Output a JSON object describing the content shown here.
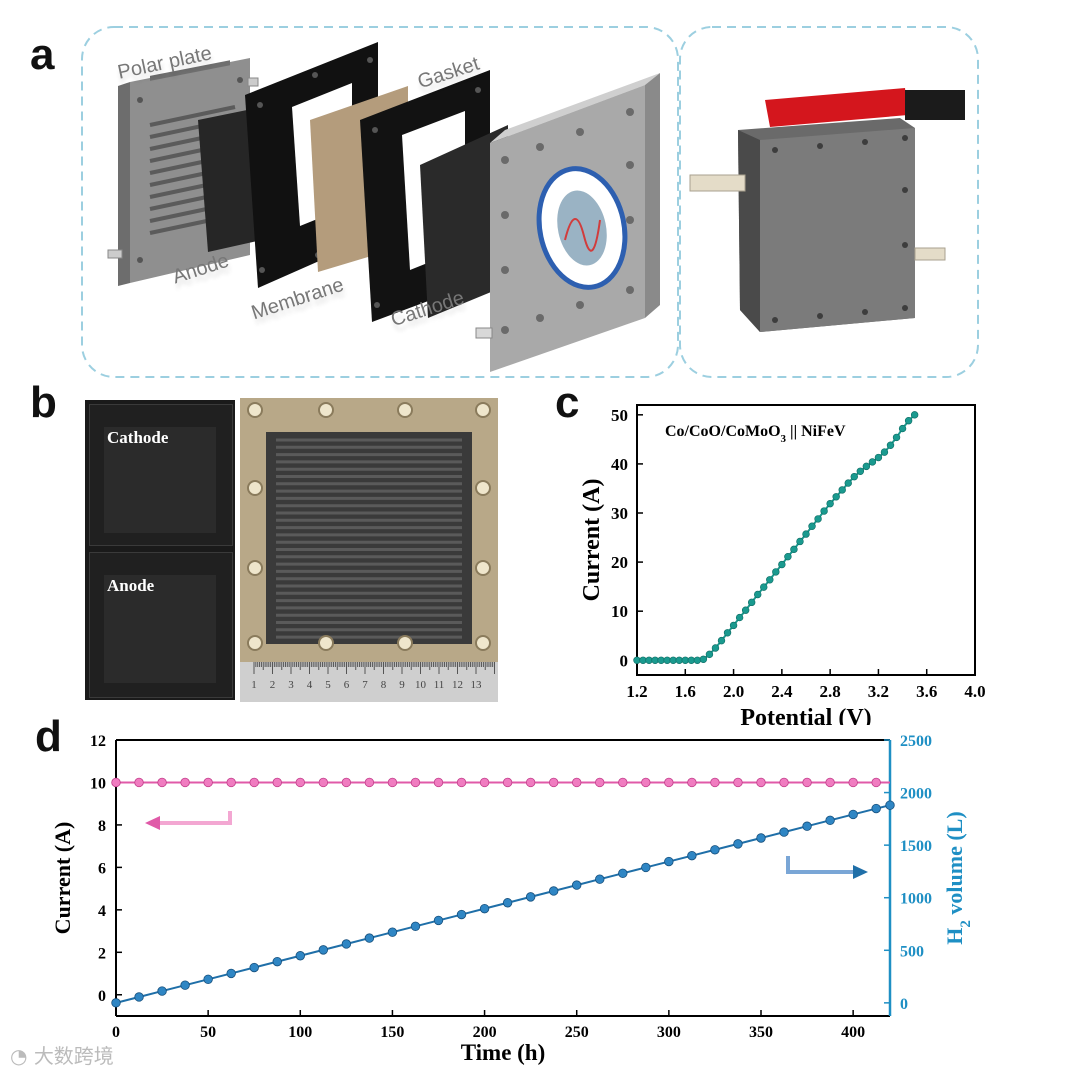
{
  "panels": {
    "a": {
      "letter": "a",
      "labels": {
        "polar_plate": "Polar plate",
        "gasket": "Gasket",
        "anode": "Anode",
        "membrane": "Membrane",
        "cathode": "Cathode"
      }
    },
    "b": {
      "letter": "b",
      "labels": {
        "cathode": "Cathode",
        "anode": "Anode"
      },
      "ruler_numbers": [
        "1",
        "2",
        "3",
        "4",
        "5",
        "6",
        "7",
        "8",
        "9",
        "10",
        "11",
        "12",
        "13"
      ]
    },
    "c": {
      "letter": "c"
    },
    "d": {
      "letter": "d"
    }
  },
  "watermark": "大数跨境",
  "colors": {
    "teal": "#1a9a8f",
    "pink": "#e05aa8",
    "blue": "#1f6fa8",
    "axis_blue": "#1e8fc4",
    "dash": "#9ccfe0"
  },
  "chart_data": [
    {
      "id": "c",
      "type": "line",
      "title": "Co/CoO/CoMoO3 || NiFeV",
      "xlabel": "Potential (V)",
      "ylabel": "Current (A)",
      "xlim": [
        1.2,
        4.0
      ],
      "ylim": [
        -3,
        52
      ],
      "xticks": [
        1.2,
        1.6,
        2.0,
        2.4,
        2.8,
        3.2,
        3.6,
        4.0
      ],
      "xtick_labels": [
        "1.2",
        "1.6",
        "2.0",
        "2.4",
        "2.8",
        "3.2",
        "3.6",
        "4.0"
      ],
      "yticks": [
        0,
        10,
        20,
        30,
        40,
        50
      ],
      "ytick_labels": [
        "0",
        "10",
        "20",
        "30",
        "40",
        "50"
      ],
      "series": [
        {
          "name": "Co/CoO/CoMoO3 || NiFeV",
          "x": [
            1.2,
            1.25,
            1.3,
            1.35,
            1.4,
            1.45,
            1.5,
            1.55,
            1.6,
            1.65,
            1.7,
            1.75,
            1.8,
            1.85,
            1.9,
            1.95,
            2.0,
            2.05,
            2.1,
            2.15,
            2.2,
            2.25,
            2.3,
            2.35,
            2.4,
            2.45,
            2.5,
            2.55,
            2.6,
            2.65,
            2.7,
            2.75,
            2.8,
            2.85,
            2.9,
            2.95,
            3.0,
            3.05,
            3.1,
            3.15,
            3.2,
            3.25,
            3.3,
            3.35,
            3.4,
            3.45,
            3.5
          ],
          "y": [
            0,
            0,
            0,
            0,
            0,
            0,
            0,
            0,
            0,
            0,
            0,
            0.2,
            1.2,
            2.5,
            4,
            5.6,
            7.1,
            8.7,
            10.2,
            11.8,
            13.4,
            14.9,
            16.4,
            18,
            19.5,
            21.1,
            22.6,
            24.2,
            25.7,
            27.3,
            28.8,
            30.4,
            31.9,
            33.3,
            34.7,
            36.1,
            37.4,
            38.5,
            39.5,
            40.4,
            41.3,
            42.4,
            43.8,
            45.4,
            47.2,
            48.8,
            50
          ]
        }
      ]
    },
    {
      "id": "d",
      "type": "line",
      "xlabel": "Time (h)",
      "ylabel_left": "Current (A)",
      "ylabel_right_pre": "H",
      "ylabel_right_sub": "2",
      "ylabel_right_post": " volume (L)",
      "xlim": [
        0,
        420
      ],
      "ylim_left": [
        -1,
        12
      ],
      "ylim_right": [
        -125,
        2500
      ],
      "xticks": [
        0,
        50,
        100,
        150,
        200,
        250,
        300,
        350,
        400
      ],
      "xtick_labels": [
        "0",
        "50",
        "100",
        "150",
        "200",
        "250",
        "300",
        "350",
        "400"
      ],
      "yticks_left": [
        0,
        2,
        4,
        6,
        8,
        10,
        12
      ],
      "ytick_labels_left": [
        "0",
        "2",
        "4",
        "6",
        "8",
        "10",
        "12"
      ],
      "yticks_right": [
        0,
        500,
        1000,
        1500,
        2000,
        2500
      ],
      "ytick_labels_right": [
        "0",
        "500",
        "1000",
        "1500",
        "2000",
        "2500"
      ],
      "series": [
        {
          "name": "Current",
          "axis": "left",
          "x": [
            0,
            12.5,
            25,
            37.5,
            50,
            62.5,
            75,
            87.5,
            100,
            112.5,
            125,
            137.5,
            150,
            162.5,
            175,
            187.5,
            200,
            212.5,
            225,
            237.5,
            250,
            262.5,
            275,
            287.5,
            300,
            312.5,
            325,
            337.5,
            350,
            362.5,
            375,
            387.5,
            400,
            412.5
          ],
          "y": [
            10,
            10,
            10,
            10,
            10,
            10,
            10,
            10,
            10,
            10,
            10,
            10,
            10,
            10,
            10,
            10,
            10,
            10,
            10,
            10,
            10,
            10,
            10,
            10,
            10,
            10,
            10,
            10,
            10,
            10,
            10,
            10,
            10,
            10
          ]
        },
        {
          "name": "H2 volume",
          "axis": "right",
          "x": [
            0,
            12.5,
            25,
            37.5,
            50,
            62.5,
            75,
            87.5,
            100,
            112.5,
            125,
            137.5,
            150,
            162.5,
            175,
            187.5,
            200,
            212.5,
            225,
            237.5,
            250,
            262.5,
            275,
            287.5,
            300,
            312.5,
            325,
            337.5,
            350,
            362.5,
            375,
            387.5,
            400,
            412.5,
            420
          ],
          "y": [
            0,
            56,
            112,
            168,
            224,
            280,
            336,
            392,
            448,
            504,
            560,
            616,
            672,
            728,
            784,
            840,
            896,
            952,
            1008,
            1064,
            1120,
            1176,
            1232,
            1288,
            1344,
            1400,
            1456,
            1512,
            1568,
            1624,
            1680,
            1736,
            1792,
            1848,
            1880
          ]
        }
      ]
    }
  ]
}
